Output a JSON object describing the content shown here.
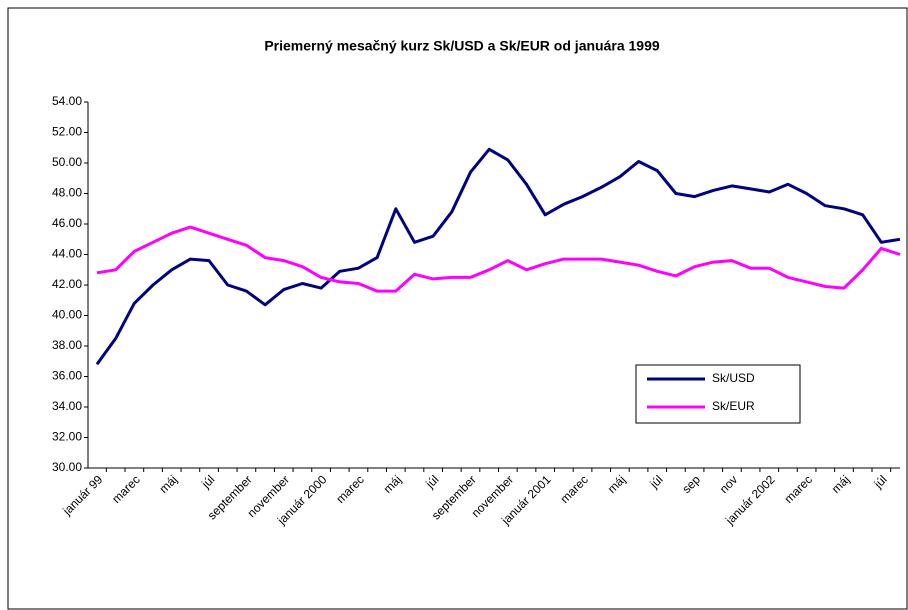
{
  "chart_data": {
    "type": "line",
    "title": "Priemerný mesačný kurz Sk/USD a Sk/EUR od januára 1999",
    "categories": [
      "január 99",
      null,
      "marec",
      null,
      "máj",
      null,
      "júl",
      null,
      "september",
      null,
      "november",
      null,
      "január 2000",
      null,
      "marec",
      null,
      "máj",
      null,
      "júl",
      null,
      "september",
      null,
      "november",
      null,
      "január 2001",
      null,
      "marec",
      null,
      "máj",
      null,
      "júl",
      null,
      "sep",
      null,
      "nov",
      null,
      "január 2002",
      null,
      "marec",
      null,
      "máj",
      null,
      "júl",
      null
    ],
    "series": [
      {
        "name": "Sk/USD",
        "color": "#000080",
        "values": [
          36.8,
          38.5,
          40.8,
          42.0,
          43.0,
          43.7,
          43.6,
          42.0,
          41.6,
          40.7,
          41.7,
          42.1,
          41.8,
          42.9,
          43.1,
          43.8,
          47.0,
          44.8,
          45.2,
          46.8,
          49.4,
          50.9,
          50.2,
          48.6,
          46.6,
          47.3,
          47.8,
          48.4,
          49.1,
          50.1,
          49.5,
          48.0,
          47.8,
          48.2,
          48.5,
          48.3,
          48.1,
          48.6,
          48.0,
          47.2,
          47.0,
          46.6,
          44.8,
          45.0
        ]
      },
      {
        "name": "Sk/EUR",
        "color": "#ff00ff",
        "values": [
          42.8,
          43.0,
          44.2,
          44.8,
          45.4,
          45.8,
          45.4,
          45.0,
          44.6,
          43.8,
          43.6,
          43.2,
          42.5,
          42.2,
          42.1,
          41.6,
          41.6,
          42.7,
          42.4,
          42.5,
          42.5,
          43.0,
          43.6,
          43.0,
          43.4,
          43.7,
          43.7,
          43.7,
          43.5,
          43.3,
          42.9,
          42.6,
          43.2,
          43.5,
          43.6,
          43.1,
          43.1,
          42.5,
          42.2,
          41.9,
          41.8,
          43.0,
          44.4,
          44.0
        ]
      }
    ],
    "ylim": [
      30,
      54
    ],
    "yticks": [
      {
        "value": 30,
        "label": "30.00"
      },
      {
        "value": 32,
        "label": "32.00"
      },
      {
        "value": 34,
        "label": "34.00"
      },
      {
        "value": 36,
        "label": "36.00"
      },
      {
        "value": 38,
        "label": "38.00"
      },
      {
        "value": 40,
        "label": "40.00"
      },
      {
        "value": 42,
        "label": "42.00"
      },
      {
        "value": 44,
        "label": "44.00"
      },
      {
        "value": 46,
        "label": "46.00"
      },
      {
        "value": 48,
        "label": "48.00"
      },
      {
        "value": 50,
        "label": "50.00"
      },
      {
        "value": 52,
        "label": "52.00"
      },
      {
        "value": 54,
        "label": "54.00"
      }
    ],
    "grid": false
  }
}
